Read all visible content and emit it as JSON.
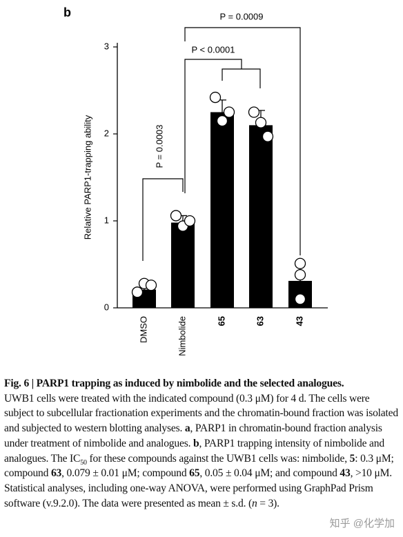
{
  "chart_data": {
    "type": "bar",
    "panel_label": "b",
    "ylabel": "Relative PARP1-trapping ability",
    "categories": [
      "DMSO",
      "Nimbolide",
      "65",
      "63",
      "43"
    ],
    "category_bold": [
      false,
      false,
      true,
      true,
      true
    ],
    "values": [
      0.21,
      0.98,
      2.25,
      2.1,
      0.31
    ],
    "errors": [
      0.05,
      0.08,
      0.14,
      0.17,
      0.2
    ],
    "points": [
      [
        0.18,
        0.28,
        0.26
      ],
      [
        1.06,
        0.94,
        1.0
      ],
      [
        2.42,
        2.15,
        2.25
      ],
      [
        2.25,
        2.13,
        1.97
      ],
      [
        0.51,
        0.38,
        0.1
      ]
    ],
    "color": "#000000",
    "ylim": [
      0,
      3
    ],
    "yticks": [
      0,
      1,
      2,
      3
    ],
    "annotations": [
      "P = 0.0003",
      "P < 0.0001",
      "P = 0.0009"
    ]
  },
  "caption": {
    "title": "Fig. 6 | PARP1 trapping as induced by nimbolide and the selected analogues.",
    "runs": [
      {
        "text": "UWB1 cells were treated with the indicated compound (0.3 μM) for 4 d. The cells were subject to subcellular fractionation experiments and the chromatin-bound fraction was isolated and subjected to western blotting analyses. "
      },
      {
        "text": "a",
        "style": "bold"
      },
      {
        "text": ", PARP1 in chromatin-bound fraction analysis under treatment of nimbolide and analogues. "
      },
      {
        "text": "b",
        "style": "bold"
      },
      {
        "text": ", PARP1 trapping intensity of nimbolide and analogues. The IC"
      },
      {
        "text": "50",
        "style": "sub"
      },
      {
        "text": " for these compounds against the UWB1 cells was: nimbolide, "
      },
      {
        "text": "5",
        "style": "bold"
      },
      {
        "text": ": 0.3 μM; compound "
      },
      {
        "text": "63",
        "style": "bold"
      },
      {
        "text": ", 0.079 ± 0.01 μM; compound "
      },
      {
        "text": "65",
        "style": "bold"
      },
      {
        "text": ", 0.05 ± 0.04 μM; and compound "
      },
      {
        "text": "43",
        "style": "bold"
      },
      {
        "text": ", >10 μM. Statistical analyses, including one-way ANOVA, were performed using GraphPad Prism software (v.9.2.0). The data were presented as mean ± s.d. ("
      },
      {
        "text": "n",
        "style": "italic"
      },
      {
        "text": " = 3)."
      }
    ]
  },
  "watermark": "知乎 @化学加"
}
